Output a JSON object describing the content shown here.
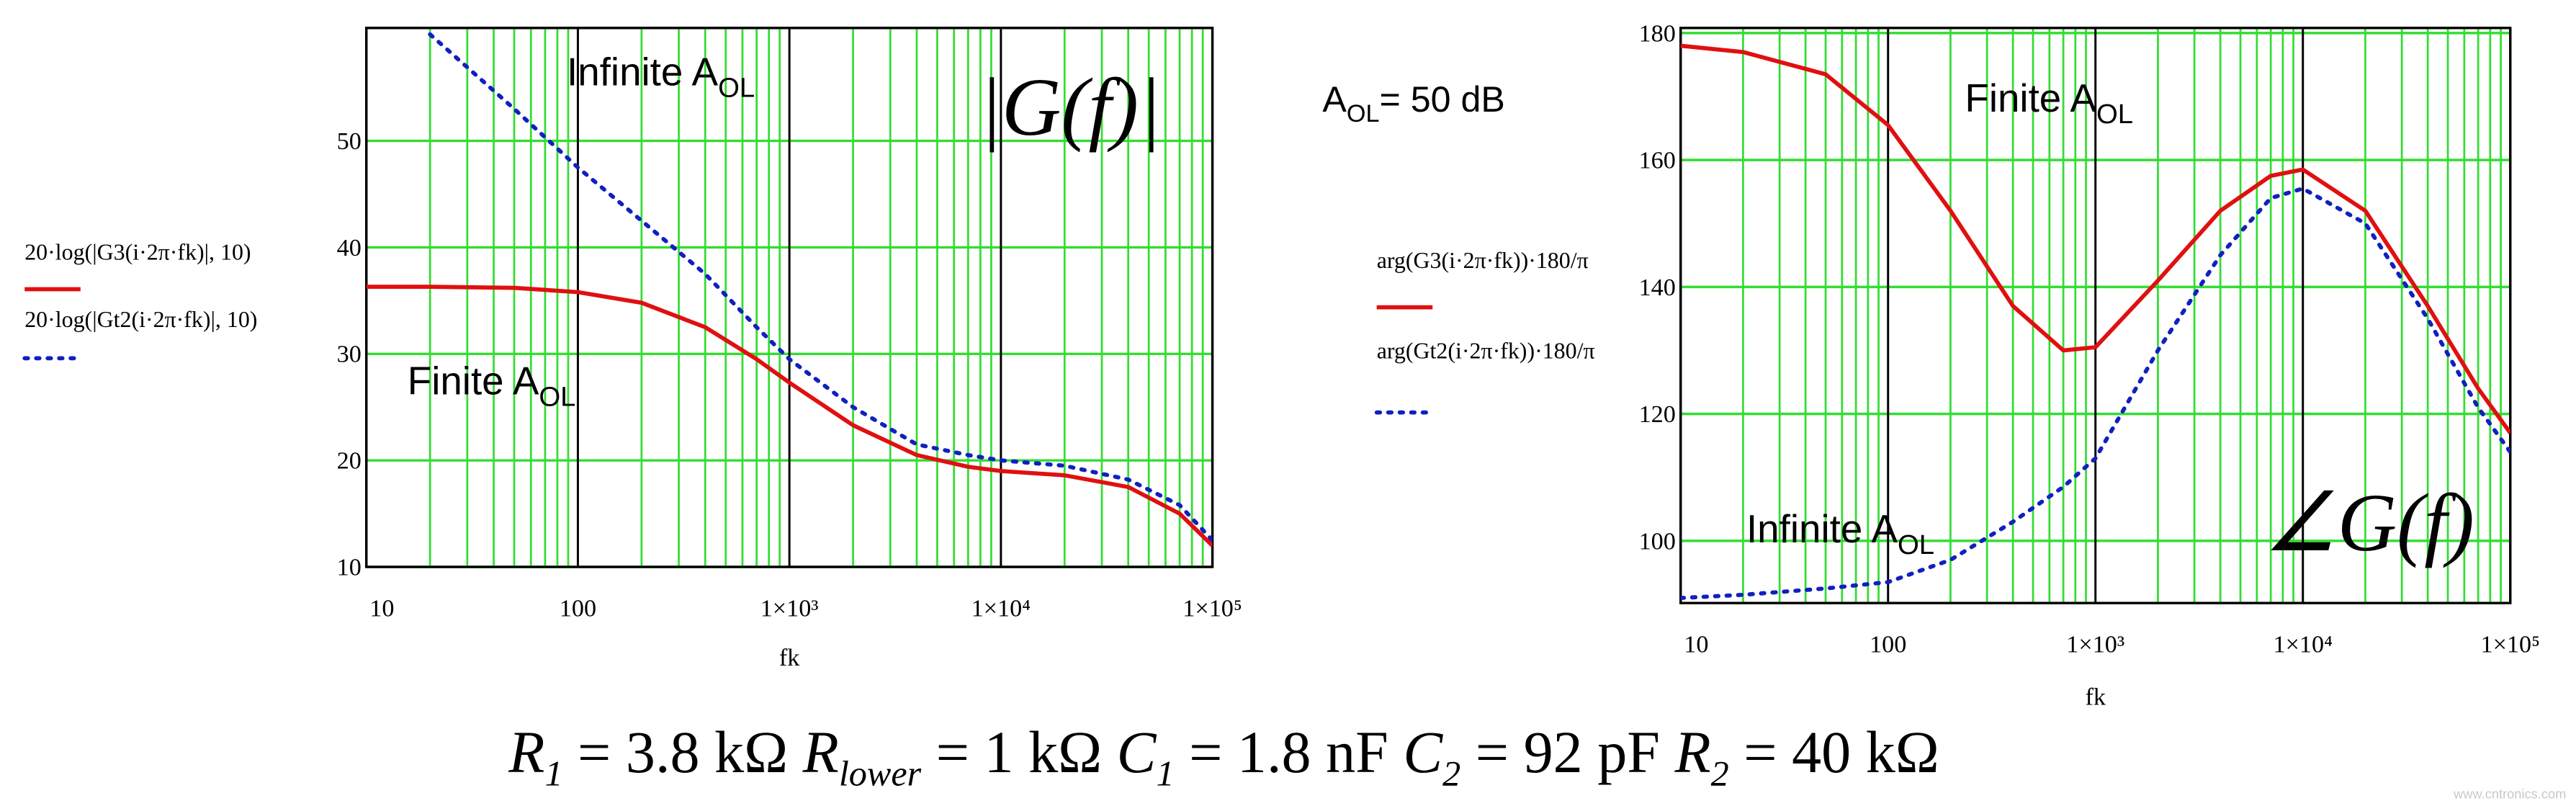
{
  "chart_data": [
    {
      "type": "line",
      "x_label": "fk",
      "xscale": "log",
      "x": [
        10,
        20,
        50,
        100,
        200,
        400,
        700,
        1000,
        2000,
        4000,
        7000,
        10000,
        20000,
        40000,
        70000,
        100000
      ],
      "xlim": [
        10,
        100000
      ],
      "xticks": [
        10,
        100,
        {
          "value": 1000,
          "label": "1×10³"
        },
        {
          "value": 10000,
          "label": "1×10⁴"
        },
        {
          "value": 100000,
          "label": "1×10⁵"
        }
      ],
      "ylim": [
        10,
        60.6
      ],
      "yticks": [
        10,
        20,
        30,
        40,
        50
      ],
      "grid": true,
      "grid_color": "#33dd33",
      "major_x_grid_color": "#000000",
      "series": [
        {
          "name": "20·log(|G3(i·2π·fk)|, 10)",
          "color": "#e01010",
          "line_style": "solid",
          "values": [
            36.3,
            36.3,
            36.2,
            35.8,
            34.8,
            32.5,
            29.5,
            27.3,
            23.3,
            20.5,
            19.4,
            19,
            18.6,
            17.5,
            15,
            12
          ]
        },
        {
          "name": "20·log(|Gt2(i·2π·fk)|, 10)",
          "color": "#1020c0",
          "line_style": "dotted",
          "values": [
            null,
            60,
            53,
            47.5,
            42.5,
            37.5,
            32.5,
            29.5,
            25,
            21.5,
            20.5,
            20,
            19.5,
            18.2,
            15.8,
            12.5
          ]
        }
      ],
      "annotations": [
        {
          "text": "Infinite A",
          "sub": "OL"
        },
        {
          "text": "Finite A",
          "sub": "OL"
        },
        {
          "text": "|G(f)|"
        }
      ]
    },
    {
      "type": "line",
      "x_label": "fk",
      "xscale": "log",
      "x": [
        10,
        20,
        50,
        100,
        200,
        400,
        700,
        1000,
        2000,
        4000,
        7000,
        10000,
        20000,
        40000,
        70000,
        100000
      ],
      "xlim": [
        10,
        100000
      ],
      "xticks": [
        10,
        100,
        {
          "value": 1000,
          "label": "1×10³"
        },
        {
          "value": 10000,
          "label": "1×10⁴"
        },
        {
          "value": 100000,
          "label": "1×10⁵"
        }
      ],
      "ylim": [
        90.2,
        180.8
      ],
      "yticks": [
        100,
        120,
        140,
        160,
        180
      ],
      "grid": true,
      "grid_color": "#33dd33",
      "major_x_grid_color": "#000000",
      "series": [
        {
          "name": "arg(G3(i·2π·fk))·180/π",
          "color": "#e01010",
          "line_style": "solid",
          "values": [
            178,
            177,
            173.5,
            165.5,
            152,
            137,
            130,
            130.5,
            141,
            152,
            157.5,
            158.5,
            152,
            137,
            124,
            117
          ]
        },
        {
          "name": "arg(Gt2(i·2π·fk))·180/π",
          "color": "#1020c0",
          "line_style": "dotted",
          "values": [
            91,
            91.5,
            92.5,
            93.5,
            97,
            103,
            108.5,
            113,
            130,
            145,
            154,
            155.5,
            150,
            135,
            121,
            114
          ]
        }
      ],
      "annotations": [
        {
          "text": "Finite A",
          "sub": "OL"
        },
        {
          "text": "Infinite A",
          "sub": "OL"
        },
        {
          "text": "∠G(f)"
        }
      ]
    }
  ],
  "note": {
    "text": "A",
    "sub": "OL",
    "rest": "= 50 dB"
  },
  "formula": [
    {
      "symbol": "R",
      "sub": "1",
      "rest": " = 3.8 kΩ "
    },
    {
      "symbol": "R",
      "sub": "lower",
      "rest": " = 1 kΩ "
    },
    {
      "symbol": "C",
      "sub": "1",
      "rest": " = 1.8 nF "
    },
    {
      "symbol": "C",
      "sub": "2",
      "rest": " = 92 pF "
    },
    {
      "symbol": "R",
      "sub": "2",
      "rest": " = 40 kΩ"
    }
  ],
  "watermark": "www.cntronics.com"
}
